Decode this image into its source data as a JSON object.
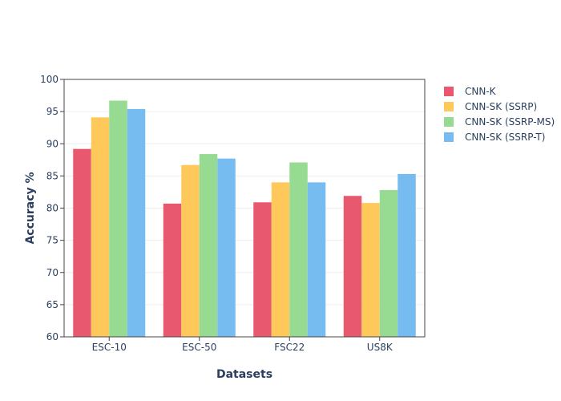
{
  "chart_data": {
    "type": "bar",
    "title": "",
    "xlabel": "Datasets",
    "ylabel": "Accuracy %",
    "categories": [
      "ESC-10",
      "ESC-50",
      "FSC22",
      "US8K"
    ],
    "ylim": [
      60,
      100
    ],
    "yticks": [
      60,
      65,
      70,
      75,
      80,
      85,
      90,
      95,
      100
    ],
    "grid": true,
    "legend_position": "right",
    "series": [
      {
        "name": "CNN-K",
        "color": "#e8586f",
        "values": [
          89.2,
          80.7,
          80.9,
          81.9
        ]
      },
      {
        "name": "CNN-SK (SSRP)",
        "color": "#ffc85a",
        "values": [
          94.1,
          86.7,
          84.0,
          80.8
        ]
      },
      {
        "name": "CNN-SK (SSRP-MS)",
        "color": "#96db91",
        "values": [
          96.7,
          88.4,
          87.1,
          82.8
        ]
      },
      {
        "name": "CNN-SK (SSRP-T)",
        "color": "#76bcf1",
        "values": [
          95.4,
          87.7,
          84.0,
          85.3
        ]
      }
    ]
  }
}
